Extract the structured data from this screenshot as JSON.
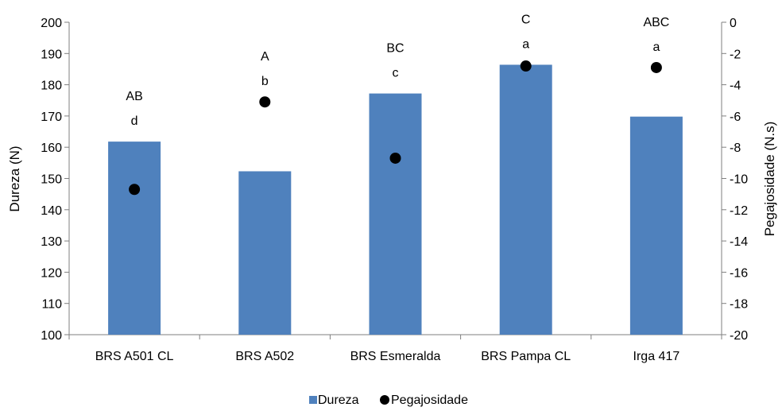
{
  "chart_data": {
    "type": "bar",
    "categories": [
      "BRS A501 CL",
      "BRS A502",
      "BRS Esmeralda",
      "BRS Pampa CL",
      "Irga 417"
    ],
    "series": [
      {
        "name": "Dureza",
        "type": "bar",
        "axis": "left",
        "values": [
          161.8,
          152.3,
          177.2,
          186.4,
          169.8
        ],
        "color": "#4f81bd",
        "letters": [
          "AB",
          "A",
          "BC",
          "C",
          "ABC"
        ]
      },
      {
        "name": "Pegajosidade",
        "type": "scatter",
        "axis": "right",
        "values": [
          -10.7,
          -5.1,
          -8.7,
          -2.8,
          -2.9
        ],
        "color": "#000000",
        "letters": [
          "d",
          "b",
          "c",
          "a",
          "a"
        ]
      }
    ],
    "ylabel": "Dureza (N)",
    "ylim": [
      100,
      200
    ],
    "yticks": [
      "100",
      "110",
      "120",
      "130",
      "140",
      "150",
      "160",
      "170",
      "180",
      "190",
      "200"
    ],
    "y2label": "Pegajosidade (N.s)",
    "y2lim": [
      -20,
      0
    ],
    "y2ticks": [
      "-20",
      "-18",
      "-16",
      "-14",
      "-12",
      "-10",
      "-8",
      "-6",
      "-4",
      "-2",
      "0"
    ],
    "xlabel": "",
    "grid": false,
    "legend_position": "bottom"
  }
}
